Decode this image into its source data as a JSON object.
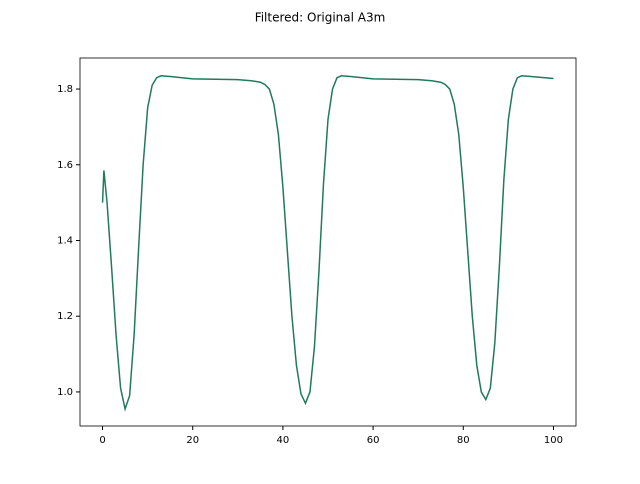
{
  "chart_data": {
    "type": "line",
    "title": "Filtered: Original A3m",
    "x": [
      0,
      0.3,
      1,
      2,
      3,
      4,
      5,
      6,
      7,
      8,
      9,
      10,
      11,
      12,
      13,
      15,
      20,
      25,
      30,
      33,
      35,
      36,
      37,
      38,
      39,
      40,
      41,
      42,
      43,
      44,
      45,
      46,
      47,
      48,
      49,
      50,
      51,
      52,
      53,
      55,
      60,
      65,
      70,
      73,
      75,
      76,
      77,
      78,
      79,
      80,
      81,
      82,
      83,
      84,
      85,
      86,
      87,
      88,
      89,
      90,
      91,
      92,
      93,
      95,
      100
    ],
    "series": [
      {
        "name": "A3m",
        "color": "#217a5b",
        "values": [
          1.5,
          1.585,
          1.5,
          1.33,
          1.15,
          1.01,
          0.955,
          0.99,
          1.15,
          1.38,
          1.6,
          1.75,
          1.81,
          1.83,
          1.835,
          1.833,
          1.827,
          1.826,
          1.825,
          1.822,
          1.818,
          1.812,
          1.8,
          1.76,
          1.68,
          1.54,
          1.37,
          1.2,
          1.07,
          0.995,
          0.97,
          1.0,
          1.12,
          1.32,
          1.55,
          1.72,
          1.8,
          1.83,
          1.835,
          1.833,
          1.827,
          1.826,
          1.825,
          1.822,
          1.818,
          1.812,
          1.8,
          1.76,
          1.68,
          1.54,
          1.37,
          1.2,
          1.07,
          1.0,
          0.98,
          1.01,
          1.13,
          1.33,
          1.56,
          1.72,
          1.8,
          1.83,
          1.835,
          1.833,
          1.828
        ]
      }
    ],
    "xlim": [
      -5,
      105
    ],
    "ylim": [
      0.91,
      1.882
    ],
    "xticks": [
      0,
      20,
      40,
      60,
      80,
      100
    ],
    "yticks": [
      {
        "value": 1,
        "label": "1.0"
      },
      1.2,
      1.4,
      1.6,
      1.8
    ]
  }
}
